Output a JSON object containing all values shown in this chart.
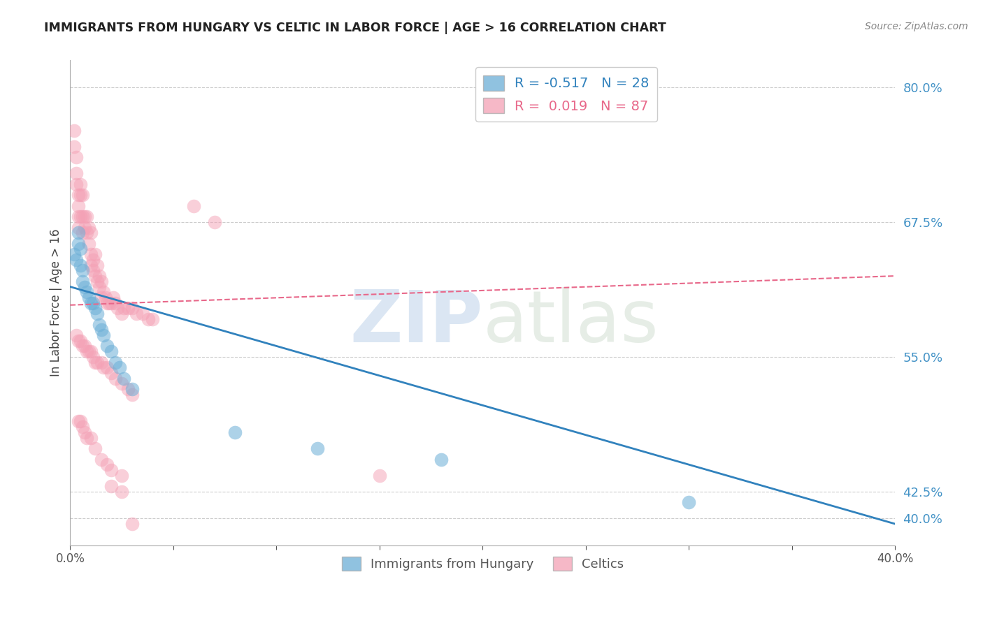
{
  "title": "IMMIGRANTS FROM HUNGARY VS CELTIC IN LABOR FORCE | AGE > 16 CORRELATION CHART",
  "source": "Source: ZipAtlas.com",
  "ylabel": "In Labor Force | Age > 16",
  "xlabel": "",
  "watermark_zip": "ZIP",
  "watermark_atlas": "atlas",
  "background_color": "#ffffff",
  "blue_color": "#6baed6",
  "pink_color": "#f4a0b5",
  "blue_label": "Immigrants from Hungary",
  "pink_label": "Celtics",
  "blue_R": -0.517,
  "blue_N": 28,
  "pink_R": 0.019,
  "pink_N": 87,
  "xmin": 0.0,
  "xmax": 0.4,
  "ymin": 0.375,
  "ymax": 0.825,
  "yticks": [
    0.4,
    0.425,
    0.55,
    0.675,
    0.8
  ],
  "ytick_labels": [
    "40.0%",
    "42.5%",
    "55.0%",
    "67.5%",
    "80.0%"
  ],
  "xticks": [
    0.0,
    0.05,
    0.1,
    0.15,
    0.2,
    0.25,
    0.3,
    0.35,
    0.4
  ],
  "xtick_labels": [
    "0.0%",
    "",
    "",
    "",
    "",
    "",
    "",
    "",
    "40.0%"
  ],
  "blue_line_x": [
    0.0,
    0.4
  ],
  "blue_line_y": [
    0.615,
    0.395
  ],
  "pink_line_x": [
    0.0,
    0.4
  ],
  "pink_line_y": [
    0.598,
    0.625
  ],
  "blue_points_x": [
    0.002,
    0.003,
    0.004,
    0.004,
    0.005,
    0.005,
    0.006,
    0.006,
    0.007,
    0.008,
    0.009,
    0.01,
    0.011,
    0.012,
    0.013,
    0.014,
    0.015,
    0.016,
    0.018,
    0.02,
    0.022,
    0.024,
    0.026,
    0.03,
    0.08,
    0.12,
    0.18,
    0.3
  ],
  "blue_points_y": [
    0.645,
    0.64,
    0.665,
    0.655,
    0.65,
    0.635,
    0.63,
    0.62,
    0.615,
    0.61,
    0.605,
    0.6,
    0.6,
    0.595,
    0.59,
    0.58,
    0.575,
    0.57,
    0.56,
    0.555,
    0.545,
    0.54,
    0.53,
    0.52,
    0.48,
    0.465,
    0.455,
    0.415
  ],
  "pink_points_x": [
    0.002,
    0.002,
    0.003,
    0.003,
    0.003,
    0.004,
    0.004,
    0.004,
    0.004,
    0.005,
    0.005,
    0.005,
    0.006,
    0.006,
    0.006,
    0.007,
    0.007,
    0.008,
    0.008,
    0.009,
    0.009,
    0.01,
    0.01,
    0.01,
    0.011,
    0.011,
    0.012,
    0.012,
    0.013,
    0.013,
    0.014,
    0.014,
    0.015,
    0.015,
    0.016,
    0.017,
    0.018,
    0.019,
    0.02,
    0.021,
    0.022,
    0.023,
    0.025,
    0.026,
    0.028,
    0.03,
    0.032,
    0.035,
    0.038,
    0.04,
    0.003,
    0.004,
    0.005,
    0.006,
    0.007,
    0.008,
    0.009,
    0.01,
    0.011,
    0.012,
    0.013,
    0.015,
    0.016,
    0.018,
    0.02,
    0.022,
    0.025,
    0.028,
    0.03,
    0.004,
    0.005,
    0.006,
    0.007,
    0.008,
    0.01,
    0.012,
    0.015,
    0.018,
    0.02,
    0.025,
    0.06,
    0.07,
    0.15,
    0.02,
    0.025,
    0.03
  ],
  "pink_points_y": [
    0.76,
    0.745,
    0.735,
    0.72,
    0.71,
    0.7,
    0.69,
    0.68,
    0.67,
    0.71,
    0.7,
    0.68,
    0.7,
    0.68,
    0.665,
    0.68,
    0.67,
    0.68,
    0.665,
    0.67,
    0.655,
    0.665,
    0.645,
    0.635,
    0.64,
    0.63,
    0.645,
    0.625,
    0.635,
    0.62,
    0.625,
    0.615,
    0.62,
    0.605,
    0.61,
    0.605,
    0.6,
    0.6,
    0.6,
    0.605,
    0.6,
    0.595,
    0.59,
    0.595,
    0.595,
    0.595,
    0.59,
    0.59,
    0.585,
    0.585,
    0.57,
    0.565,
    0.565,
    0.56,
    0.56,
    0.555,
    0.555,
    0.555,
    0.55,
    0.545,
    0.545,
    0.545,
    0.54,
    0.54,
    0.535,
    0.53,
    0.525,
    0.52,
    0.515,
    0.49,
    0.49,
    0.485,
    0.48,
    0.475,
    0.475,
    0.465,
    0.455,
    0.45,
    0.445,
    0.44,
    0.69,
    0.675,
    0.44,
    0.43,
    0.425,
    0.395
  ]
}
